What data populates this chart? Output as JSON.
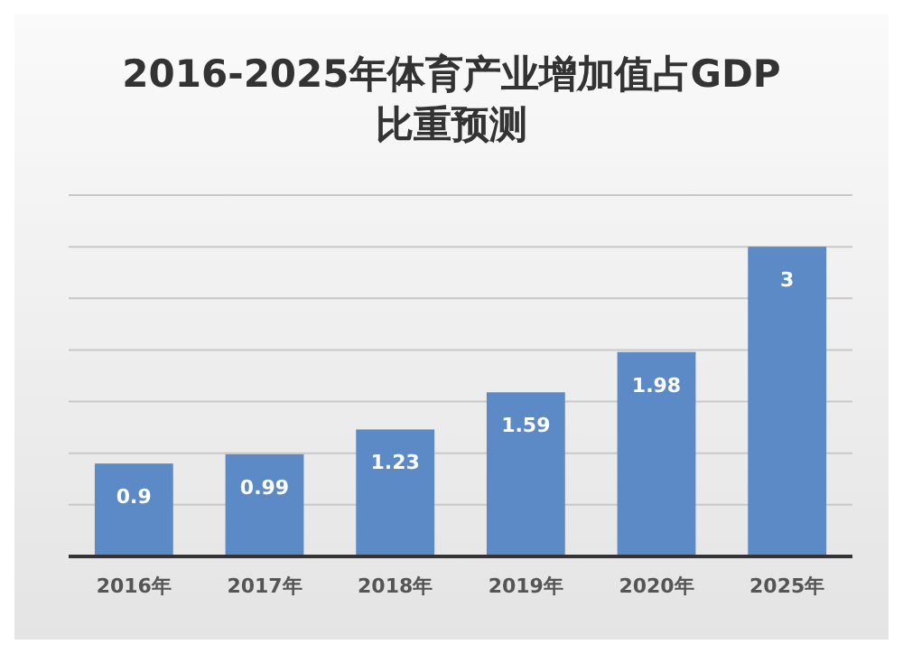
{
  "chart_data": {
    "type": "bar",
    "title": "2016-2025年体育产业增加值占GDP\n比重预测",
    "categories": [
      "2016年",
      "2017年",
      "2018年",
      "2019年",
      "2020年",
      "2025年"
    ],
    "values": [
      0.9,
      0.99,
      1.23,
      1.59,
      1.98,
      3
    ],
    "color": "#5b8ac6",
    "ylim": [
      0,
      3.5
    ],
    "yticks": [
      {
        "value": 0,
        "label": null
      },
      {
        "value": 0.5,
        "label": null
      },
      {
        "value": 1,
        "label": null
      },
      {
        "value": 1.5,
        "label": null
      },
      {
        "value": 2,
        "label": null
      },
      {
        "value": 2.5,
        "label": null
      },
      {
        "value": 3,
        "label": null
      },
      {
        "value": 3.5,
        "label": null
      }
    ],
    "grid": "y",
    "data_labels": true,
    "tick_labels": "x"
  }
}
